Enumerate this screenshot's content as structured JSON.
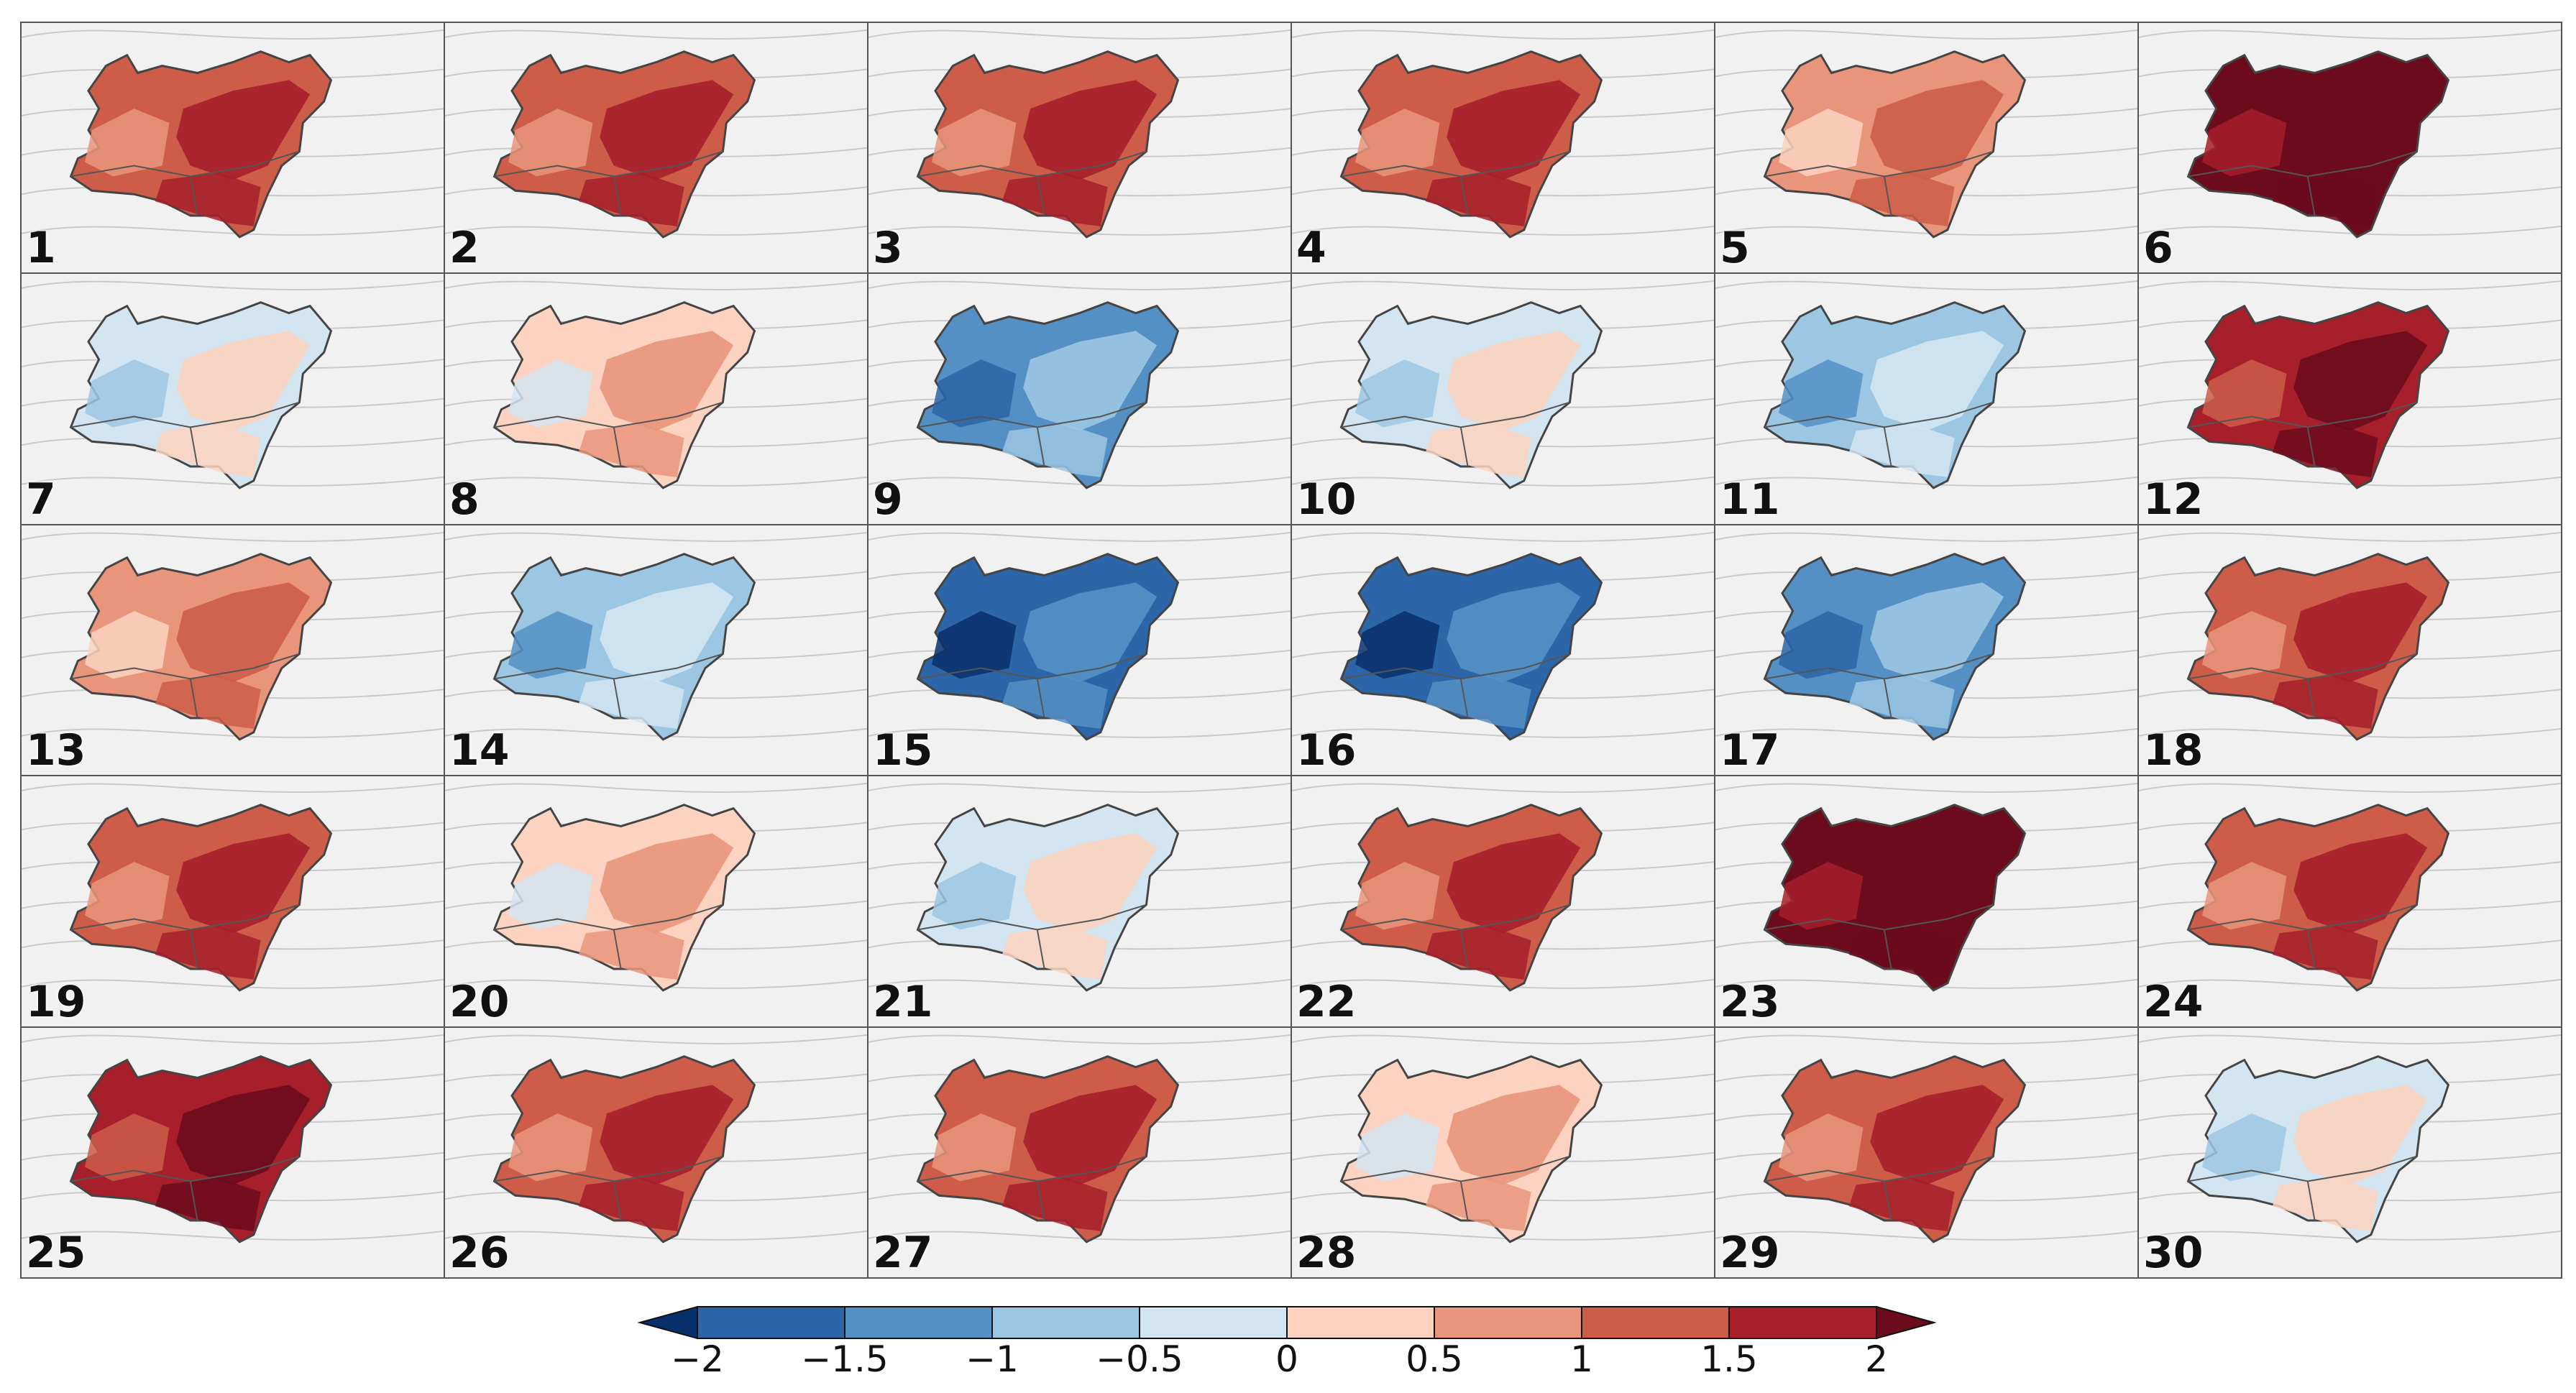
{
  "colorbar": {
    "ticks": [
      "−2",
      "−1.5",
      "−1",
      "−0.5",
      "0",
      "0.5",
      "1",
      "1.5",
      "2"
    ],
    "bin_colors": [
      "#08306b",
      "#2c65a8",
      "#5590c4",
      "#9cc7e3",
      "#d3e5f1",
      "#fbd3c0",
      "#e9957b",
      "#cd5d49",
      "#a61f2a",
      "#6b0b1c"
    ]
  },
  "panels": [
    {
      "label": "1",
      "level": 1
    },
    {
      "label": "2",
      "level": 1
    },
    {
      "label": "3",
      "level": 1
    },
    {
      "label": "4",
      "level": 1
    },
    {
      "label": "5",
      "level": 0.5
    },
    {
      "label": "6",
      "level": 2
    },
    {
      "label": "7",
      "level": -0.5
    },
    {
      "label": "8",
      "level": 0
    },
    {
      "label": "9",
      "level": -1.5
    },
    {
      "label": "10",
      "level": -0.5
    },
    {
      "label": "11",
      "level": -1
    },
    {
      "label": "12",
      "level": 1.5
    },
    {
      "label": "13",
      "level": 0.5
    },
    {
      "label": "14",
      "level": -1
    },
    {
      "label": "15",
      "level": -2
    },
    {
      "label": "16",
      "level": -2
    },
    {
      "label": "17",
      "level": -1.5
    },
    {
      "label": "18",
      "level": 1
    },
    {
      "label": "19",
      "level": 1
    },
    {
      "label": "20",
      "level": 0
    },
    {
      "label": "21",
      "level": -0.5
    },
    {
      "label": "22",
      "level": 1
    },
    {
      "label": "23",
      "level": 2
    },
    {
      "label": "24",
      "level": 1
    },
    {
      "label": "25",
      "level": 1.5
    },
    {
      "label": "26",
      "level": 1
    },
    {
      "label": "27",
      "level": 1
    },
    {
      "label": "28",
      "level": 0
    },
    {
      "label": "29",
      "level": 1
    },
    {
      "label": "30",
      "level": -0.5
    }
  ]
}
